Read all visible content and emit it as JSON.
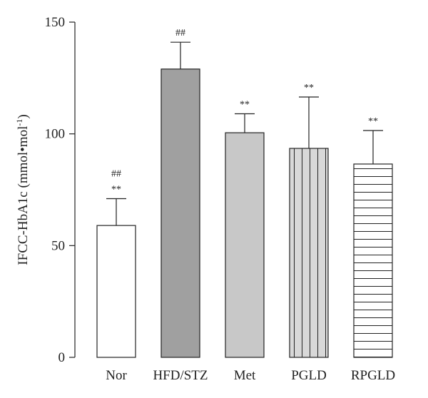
{
  "chart_data": {
    "type": "bar",
    "categories": [
      "Nor",
      "HFD/STZ",
      "Met",
      "PGLD",
      "RPGLD"
    ],
    "values": [
      59,
      129,
      100.5,
      93.5,
      86.5
    ],
    "errors": [
      12,
      12,
      8.5,
      23,
      15
    ],
    "significance_markers": [
      [
        "##",
        "**"
      ],
      [
        "##"
      ],
      [
        "**"
      ],
      [
        "**"
      ],
      [
        "**"
      ]
    ],
    "bar_fills": [
      "#ffffff",
      "#a0a0a0",
      "#c8c8c8",
      "#d8d8d8",
      "#ffffff"
    ],
    "bar_patterns": [
      "solid",
      "solid",
      "solid",
      "vertical-lines",
      "horizontal-lines"
    ],
    "ylabel": "IFCC-HbA1c (mmol•mol",
    "ylabel_superscript": "-1",
    "ylabel_suffix": ")",
    "ylim": [
      0,
      150
    ],
    "yticks": [
      0,
      50,
      100,
      150
    ],
    "grid": false,
    "legend": "none"
  }
}
